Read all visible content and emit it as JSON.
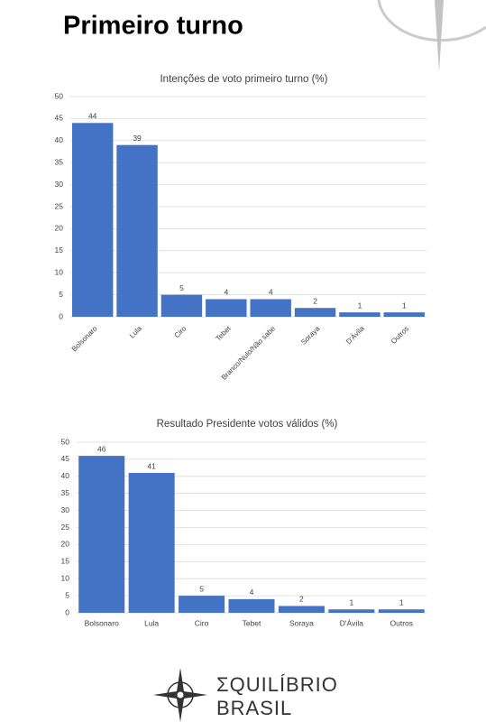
{
  "title": "Primeiro turno",
  "chart_data": [
    {
      "type": "bar",
      "title": "Intenções de voto primeiro turno (%)",
      "categories": [
        "Bolsonaro",
        "Lula",
        "Ciro",
        "Tebet",
        "Branco/Nulo/Não sabe",
        "Soraya",
        "D'Ávila",
        "Outros"
      ],
      "values": [
        44,
        39,
        5,
        4,
        4,
        2,
        1,
        1
      ],
      "color": "#4472c4",
      "ylim": [
        0,
        50
      ],
      "yticks": [
        0,
        5,
        10,
        15,
        20,
        25,
        30,
        35,
        40,
        45,
        50
      ],
      "grid": true
    },
    {
      "type": "bar",
      "title": "Resultado Presidente votos válidos (%)",
      "categories": [
        "Bolsonaro",
        "Lula",
        "Ciro",
        "Tebet",
        "Soraya",
        "D'Ávila",
        "Outros"
      ],
      "values": [
        46,
        41,
        5,
        4,
        2,
        1,
        1
      ],
      "color": "#4472c4",
      "ylim": [
        0,
        50
      ],
      "yticks": [
        0,
        5,
        10,
        15,
        20,
        25,
        30,
        35,
        40,
        45,
        50
      ],
      "grid": true
    }
  ],
  "logo": {
    "line1": "ΣQUILÍBRIO",
    "line2": "BRASIL"
  }
}
